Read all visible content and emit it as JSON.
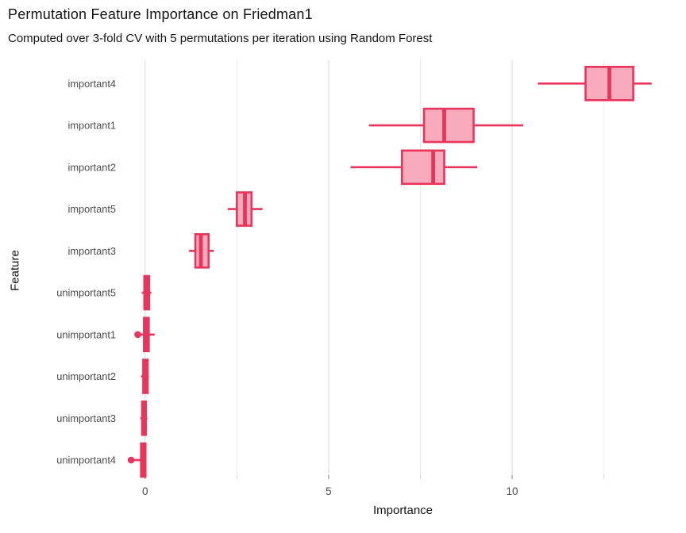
{
  "chart_data": {
    "type": "boxplot",
    "orientation": "horizontal",
    "title": "Permutation Feature Importance on Friedman1",
    "subtitle": "Computed over 3-fold CV with 5 permutations per iteration using Random Forest",
    "xlabel": "Importance",
    "ylabel": "Feature",
    "xlim": [
      -0.6,
      14.65
    ],
    "x_ticks": [
      0,
      5,
      10
    ],
    "x_minor_ticks": [
      2.5,
      7.5,
      12.5
    ],
    "grid": "vertical-only",
    "legend": "none",
    "colors": {
      "box_stroke": "#E9345C",
      "box_fill": "#F7ABBC",
      "grid_major": "#E2E2E2",
      "grid_minor": "#ECECEC",
      "tick_major": "#9A9A9A",
      "tick_minor": "#D8D8D8",
      "tick_label": "#4D4D4D",
      "text": "#141414"
    },
    "rows": [
      {
        "feature": "important4",
        "whisker_lo": 10.7,
        "q1": 12.0,
        "median": 12.65,
        "q3": 13.3,
        "whisker_hi": 13.8,
        "outliers": []
      },
      {
        "feature": "important1",
        "whisker_lo": 6.1,
        "q1": 7.6,
        "median": 8.15,
        "q3": 8.95,
        "whisker_hi": 10.3,
        "outliers": []
      },
      {
        "feature": "important2",
        "whisker_lo": 5.6,
        "q1": 7.0,
        "median": 7.85,
        "q3": 8.15,
        "whisker_hi": 9.05,
        "outliers": []
      },
      {
        "feature": "important5",
        "whisker_lo": 2.25,
        "q1": 2.5,
        "median": 2.72,
        "q3": 2.9,
        "whisker_hi": 3.2,
        "outliers": []
      },
      {
        "feature": "important3",
        "whisker_lo": 1.2,
        "q1": 1.37,
        "median": 1.52,
        "q3": 1.73,
        "whisker_hi": 1.87,
        "outliers": []
      },
      {
        "feature": "unimportant5",
        "whisker_lo": -0.09,
        "q1": -0.02,
        "median": 0.04,
        "q3": 0.11,
        "whisker_hi": 0.17,
        "outliers": []
      },
      {
        "feature": "unimportant1",
        "whisker_lo": -0.13,
        "q1": -0.03,
        "median": 0.03,
        "q3": 0.1,
        "whisker_hi": 0.26,
        "outliers": [
          -0.2
        ]
      },
      {
        "feature": "unimportant2",
        "whisker_lo": -0.11,
        "q1": -0.05,
        "median": 0.0,
        "q3": 0.07,
        "whisker_hi": 0.1,
        "outliers": []
      },
      {
        "feature": "unimportant3",
        "whisker_lo": -0.13,
        "q1": -0.08,
        "median": -0.03,
        "q3": 0.02,
        "whisker_hi": 0.06,
        "outliers": []
      },
      {
        "feature": "unimportant4",
        "whisker_lo": -0.3,
        "q1": -0.11,
        "median": -0.05,
        "q3": 0.01,
        "whisker_hi": 0.02,
        "outliers": [
          -0.38
        ]
      }
    ]
  }
}
